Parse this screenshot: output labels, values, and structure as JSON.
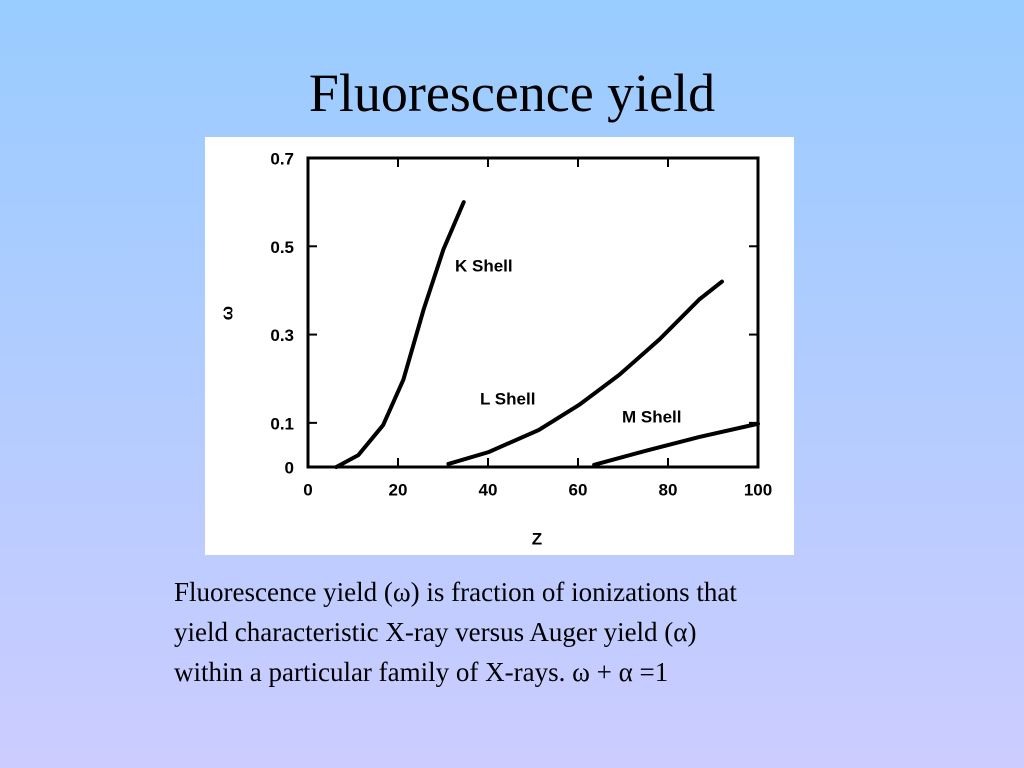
{
  "title": "Fluorescence yield",
  "chart_data": {
    "type": "line",
    "x_label": "Z",
    "y_label": "ω",
    "xlim": [
      0,
      100
    ],
    "ylim": [
      0,
      0.7
    ],
    "xticks": [
      0,
      20,
      40,
      60,
      80,
      100
    ],
    "yticks": [
      0,
      0.1,
      0.3,
      0.5,
      0.7
    ],
    "series": [
      {
        "name": "K Shell",
        "color": "#000000",
        "x": [
          6.3,
          11.2,
          16.7,
          21.2,
          25.7,
          30.1,
          34.6
        ],
        "values": [
          0,
          0.027,
          0.095,
          0.198,
          0.357,
          0.493,
          0.6
        ]
      },
      {
        "name": "L Shell",
        "color": "#000000",
        "x": [
          31.2,
          40.2,
          51.3,
          60.3,
          69.2,
          78.1,
          87,
          92
        ],
        "values": [
          0.007,
          0.034,
          0.084,
          0.141,
          0.209,
          0.289,
          0.38,
          0.42
        ]
      },
      {
        "name": "M Shell",
        "color": "#000000",
        "x": [
          63.6,
          75.9,
          87,
          100
        ],
        "values": [
          0.005,
          0.039,
          0.068,
          0.098
        ]
      }
    ]
  },
  "caption": [
    "Fluorescence yield (ω) is fraction of ionizations that",
    "yield characteristic X-ray versus Auger yield (α)",
    "within a particular family of X-rays. ω + α =1"
  ]
}
